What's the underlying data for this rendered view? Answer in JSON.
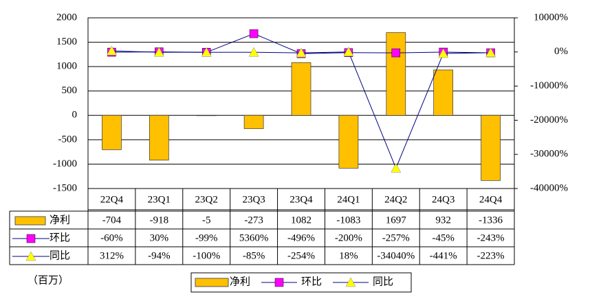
{
  "chart_data": {
    "type": "bar_line_table",
    "unit_label": "（百万）",
    "categories": [
      "22Q4",
      "23Q1",
      "23Q2",
      "23Q3",
      "23Q4",
      "24Q1",
      "24Q2",
      "24Q3",
      "24Q4"
    ],
    "series": [
      {
        "name": "净利",
        "type": "bar",
        "color": "#FFC000",
        "values": [
          -704,
          -918,
          -5,
          -273,
          1082,
          -1083,
          1697,
          932,
          -1336
        ]
      },
      {
        "name": "环比",
        "type": "line",
        "axis": "y2",
        "color": "#000080",
        "marker": "square",
        "marker_color": "#FF00FF",
        "values": [
          -60,
          30,
          -99,
          5360,
          -496,
          -200,
          -257,
          -45,
          -243
        ],
        "value_labels": [
          "-60%",
          "30%",
          "-99%",
          "5360%",
          "-496%",
          "-200%",
          "-257%",
          "-45%",
          "-243%"
        ]
      },
      {
        "name": "同比",
        "type": "line",
        "axis": "y2",
        "color": "#000080",
        "marker": "triangle",
        "marker_color": "#FFFF00",
        "values": [
          312,
          -94,
          -100,
          -85,
          -254,
          18,
          -34040,
          -441,
          -223
        ],
        "value_labels": [
          "312%",
          "-94%",
          "-100%",
          "-85%",
          "-254%",
          "18%",
          "-34040%",
          "-441%",
          "-223%"
        ]
      }
    ],
    "ylim": [
      -1500,
      2000
    ],
    "yticks": [
      -1500,
      -1000,
      -500,
      0,
      500,
      1000,
      1500,
      2000
    ],
    "y2lim": [
      -40000,
      10000
    ],
    "y2ticks": [
      {
        "value": -40000,
        "label": "-40000%"
      },
      {
        "value": -30000,
        "label": "-30000%"
      },
      {
        "value": -20000,
        "label": "-20000%"
      },
      {
        "value": -10000,
        "label": "-10000%"
      },
      {
        "value": 0,
        "label": "0%"
      },
      {
        "value": 10000,
        "label": "10000%"
      }
    ],
    "grid": true
  }
}
